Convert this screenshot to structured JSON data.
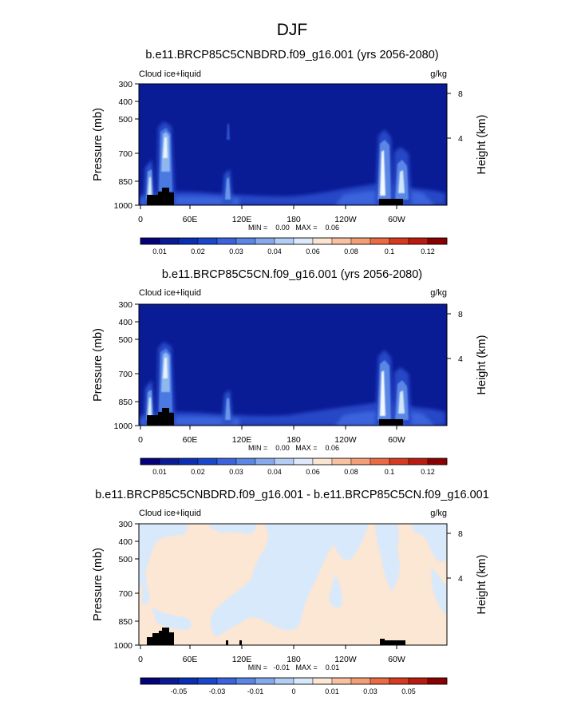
{
  "figure_title": "DJF",
  "colors": {
    "background": "#0a1b96",
    "topography": "#000000"
  },
  "chart_data": [
    {
      "type": "heatmap",
      "title": "b.e11.BRCP85C5CNBDRD.f09_g16.001 (yrs 2056-2080)",
      "variable": "Cloud ice+liquid",
      "units": "g/kg",
      "xlabel": "",
      "ylabel": "Pressure (mb)",
      "y2label": "Height (km)",
      "x_ticks": [
        "0",
        "60E",
        "120E",
        "180",
        "120W",
        "60W"
      ],
      "y_ticks": [
        "300",
        "400",
        "500",
        "700",
        "850",
        "1000"
      ],
      "y2_ticks": [
        "8",
        "4"
      ],
      "min_max_text": "MIN =    0.00   MAX =    0.06",
      "colorbar_labels": [
        "0.01",
        "0.02",
        "0.03",
        "0.04",
        "0.06",
        "0.08",
        "0.1",
        "0.12"
      ]
    },
    {
      "type": "heatmap",
      "title": "b.e11.BRCP85C5CN.f09_g16.001 (yrs 2056-2080)",
      "variable": "Cloud ice+liquid",
      "units": "g/kg",
      "xlabel": "",
      "ylabel": "Pressure (mb)",
      "y2label": "Height (km)",
      "x_ticks": [
        "0",
        "60E",
        "120E",
        "180",
        "120W",
        "60W"
      ],
      "y_ticks": [
        "300",
        "400",
        "500",
        "700",
        "850",
        "1000"
      ],
      "y2_ticks": [
        "8",
        "4"
      ],
      "min_max_text": "MIN =    0.00   MAX =    0.06",
      "colorbar_labels": [
        "0.01",
        "0.02",
        "0.03",
        "0.04",
        "0.06",
        "0.08",
        "0.1",
        "0.12"
      ]
    },
    {
      "type": "heatmap",
      "title": "b.e11.BRCP85C5CNBDRD.f09_g16.001 - b.e11.BRCP85C5CN.f09_g16.001",
      "variable": "Cloud ice+liquid",
      "units": "g/kg",
      "xlabel": "",
      "ylabel": "Pressure (mb)",
      "y2label": "Height (km)",
      "x_ticks": [
        "0",
        "60E",
        "120E",
        "180",
        "120W",
        "60W"
      ],
      "y_ticks": [
        "300",
        "400",
        "500",
        "700",
        "850",
        "1000"
      ],
      "y2_ticks": [
        "8",
        "4"
      ],
      "min_max_text": "MIN =   -0.01   MAX =    0.01",
      "colorbar_labels": [
        "-0.05",
        "-0.03",
        "-0.01",
        "0",
        "0.01",
        "0.03",
        "0.05"
      ]
    }
  ]
}
